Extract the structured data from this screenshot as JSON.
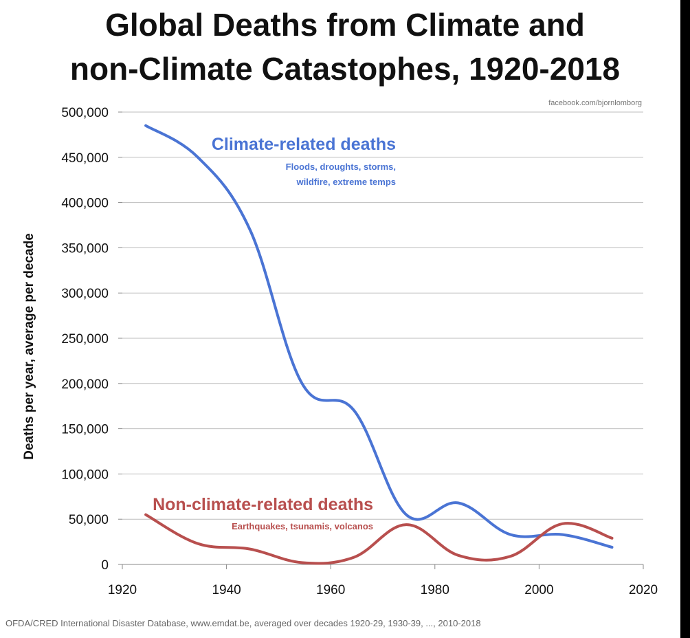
{
  "chart_data": {
    "type": "line",
    "title": "Global Deaths from Climate and non-Climate Catastophes, 1920-2018",
    "title_lines": [
      "Global Deaths from Climate and",
      "non-Climate Catastophes, 1920-2018"
    ],
    "watermark": "facebook.com/bjornlomborg",
    "ylabel": "Deaths per year, average per decade",
    "xlabel": "",
    "xlim": [
      1920,
      2020
    ],
    "ylim": [
      0,
      500000
    ],
    "x_ticks": [
      1920,
      1940,
      1960,
      1980,
      2000,
      2020
    ],
    "y_ticks": [
      0,
      50000,
      100000,
      150000,
      200000,
      250000,
      300000,
      350000,
      400000,
      450000,
      500000
    ],
    "y_tick_labels": [
      "0",
      "50,000",
      "100,000",
      "150,000",
      "200,000",
      "250,000",
      "300,000",
      "350,000",
      "400,000",
      "450,000",
      "500,000"
    ],
    "grid": "horizontal",
    "series": [
      {
        "name": "Climate-related deaths",
        "subtitle_lines": [
          "Floods, droughts, storms,",
          "wildfire, extreme temps"
        ],
        "color": "#4a74d4",
        "x": [
          1924.5,
          1934.5,
          1944.5,
          1954.5,
          1964.5,
          1974.5,
          1984.5,
          1994.5,
          2004.5,
          2014
        ],
        "values": [
          485000,
          450000,
          370000,
          200000,
          170000,
          55000,
          68000,
          33000,
          33000,
          19000
        ]
      },
      {
        "name": "Non-climate-related deaths",
        "subtitle_lines": [
          "Earthquakes, tsunamis, volcanos"
        ],
        "color": "#b84f4e",
        "x": [
          1924.5,
          1934.5,
          1944.5,
          1954.5,
          1964.5,
          1974.5,
          1984.5,
          1994.5,
          2004.5,
          2014
        ],
        "values": [
          55000,
          23000,
          17000,
          2000,
          8000,
          44000,
          10000,
          9000,
          45000,
          29000
        ]
      }
    ]
  },
  "source": "OFDA/CRED International Disaster Database, www.emdat.be, averaged over decades 1920-29, 1930-39, ..., 2010-2018"
}
